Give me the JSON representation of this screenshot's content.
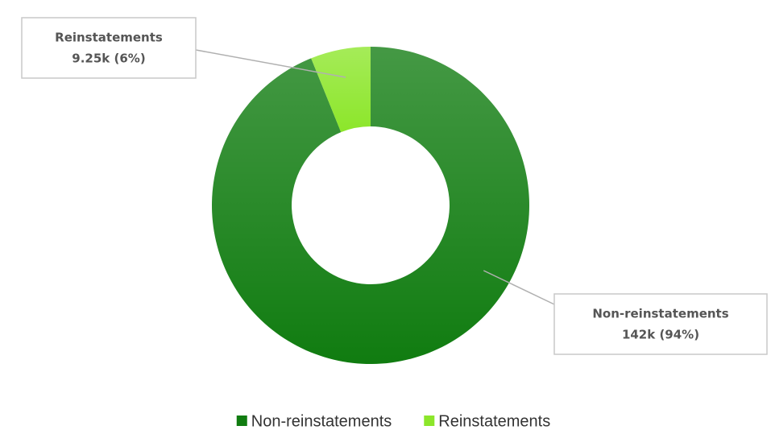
{
  "chart_data": {
    "type": "donut",
    "categories": [
      "Non-reinstatements",
      "Reinstatements"
    ],
    "values": [
      142000,
      9250
    ],
    "value_labels": [
      "142k (94%)",
      "9.25k (6%)"
    ],
    "colors": [
      "#107c10",
      "#8ce62a"
    ],
    "legend": "bottom"
  }
}
